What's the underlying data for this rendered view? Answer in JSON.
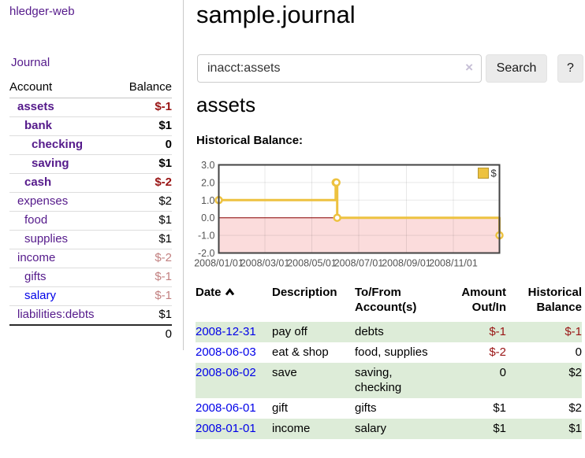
{
  "app": {
    "title": "hledger-web",
    "nav_journal": "Journal"
  },
  "sidebar": {
    "headers": [
      "Account",
      "Balance"
    ],
    "accounts": [
      {
        "name": "assets",
        "depth": 1,
        "bold": true,
        "balance": "$-1",
        "negative": "strong",
        "unvisited": false
      },
      {
        "name": "bank",
        "depth": 2,
        "bold": true,
        "balance": "$1",
        "negative": null,
        "unvisited": false
      },
      {
        "name": "checking",
        "depth": 3,
        "bold": true,
        "balance": "0",
        "negative": null,
        "unvisited": false
      },
      {
        "name": "saving",
        "depth": 3,
        "bold": true,
        "balance": "$1",
        "negative": null,
        "unvisited": false
      },
      {
        "name": "cash",
        "depth": 2,
        "bold": true,
        "balance": "$-2",
        "negative": "strong",
        "unvisited": false
      },
      {
        "name": "expenses",
        "depth": 1,
        "bold": false,
        "balance": "$2",
        "negative": null,
        "unvisited": false
      },
      {
        "name": "food",
        "depth": 2,
        "bold": false,
        "balance": "$1",
        "negative": null,
        "unvisited": false
      },
      {
        "name": "supplies",
        "depth": 2,
        "bold": false,
        "balance": "$1",
        "negative": null,
        "unvisited": false
      },
      {
        "name": "income",
        "depth": 1,
        "bold": false,
        "balance": "$-2",
        "negative": "soft",
        "unvisited": false
      },
      {
        "name": "gifts",
        "depth": 2,
        "bold": false,
        "balance": "$-1",
        "negative": "soft",
        "unvisited": false
      },
      {
        "name": "salary",
        "depth": 2,
        "bold": false,
        "balance": "$-1",
        "negative": "soft",
        "unvisited": true
      },
      {
        "name": "liabilities:debts",
        "depth": 1,
        "bold": false,
        "balance": "$1",
        "negative": null,
        "unvisited": false
      }
    ],
    "total": "0"
  },
  "header": {
    "title": "sample.journal"
  },
  "search": {
    "value": "inacct:assets",
    "clear_icon": "×",
    "button_label": "Search",
    "help_label": "?"
  },
  "account_page": {
    "heading": "assets",
    "chart_label": "Historical Balance:"
  },
  "chart_data": {
    "type": "line",
    "title": "Historical Balance",
    "step": true,
    "xlim": [
      "2008-01-01",
      "2008-12-31"
    ],
    "ylim": [
      -2,
      3
    ],
    "x_ticks": [
      "2008/01/01",
      "2008/03/01",
      "2008/05/01",
      "2008/07/01",
      "2008/09/01",
      "2008/11/01"
    ],
    "y_ticks": [
      "3.0",
      "2.0",
      "1.0",
      "0.0",
      "-1.0",
      "-2.0"
    ],
    "legend_position": "top-right",
    "grid": true,
    "series": [
      {
        "name": "$",
        "color": "#edc240",
        "points": [
          [
            "2008-01-01",
            1
          ],
          [
            "2008-06-01",
            2
          ],
          [
            "2008-06-02",
            2
          ],
          [
            "2008-06-03",
            0
          ],
          [
            "2008-12-31",
            -1
          ]
        ]
      }
    ],
    "negative_region_color": "#fbdcdc",
    "zero_line_color": "#8b0000",
    "axis_label_color": "#545454"
  },
  "register": {
    "headers": [
      "Date",
      "Description",
      "To/From Account(s)",
      "Amount Out/In",
      "Historical Balance"
    ],
    "rows": [
      {
        "date": "2008-12-31",
        "description": "pay off",
        "accounts": "debts",
        "amount": "$-1",
        "amount_negative": true,
        "balance": "$-1",
        "balance_negative": true
      },
      {
        "date": "2008-06-03",
        "description": "eat & shop",
        "accounts": "food, supplies",
        "amount": "$-2",
        "amount_negative": true,
        "balance": "0",
        "balance_negative": false
      },
      {
        "date": "2008-06-02",
        "description": "save",
        "accounts": "saving, checking",
        "amount": "0",
        "amount_negative": false,
        "balance": "$2",
        "balance_negative": false
      },
      {
        "date": "2008-06-01",
        "description": "gift",
        "accounts": "gifts",
        "amount": "$1",
        "amount_negative": false,
        "balance": "$2",
        "balance_negative": false
      },
      {
        "date": "2008-01-01",
        "description": "income",
        "accounts": "salary",
        "amount": "$1",
        "amount_negative": false,
        "balance": "$1",
        "balance_negative": false
      }
    ]
  },
  "colors": {
    "link_purple": "#551a8b",
    "link_blue": "#0000e8",
    "negative_strong": "#991414",
    "negative_soft": "#c28080",
    "row_stripe_green": "#ddecd8",
    "chart_series_gold": "#edc240",
    "chart_negative_pink": "#fbdcdc",
    "chart_zero_line": "#8b0000"
  }
}
